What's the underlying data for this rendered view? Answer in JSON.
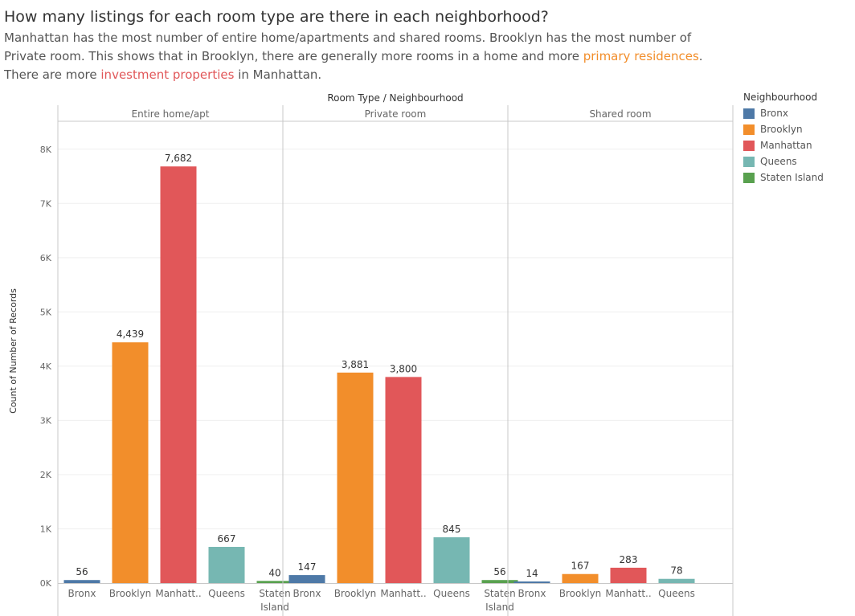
{
  "header": {
    "title": "How many listings for each room type are there in each neighborhood?",
    "line1": "Manhattan has the most number of entire home/apartments and shared rooms. Brooklyn has the most number of",
    "line2_pre": "Private room. This shows that in Brooklyn, there are generally more rooms in a home and more ",
    "line2_hl": "primary residences",
    "line2_post": ".",
    "line3_pre": "There are more ",
    "line3_hl": "investment properties",
    "line3_post": " in Manhattan."
  },
  "legend": {
    "title": "Neighbourhood",
    "items": [
      {
        "label": "Bronx",
        "color": "#4e79a7"
      },
      {
        "label": "Brooklyn",
        "color": "#f28e2b"
      },
      {
        "label": "Manhattan",
        "color": "#e15759"
      },
      {
        "label": "Queens",
        "color": "#76b7b2"
      },
      {
        "label": "Staten Island",
        "color": "#59a14f"
      }
    ]
  },
  "chart_data": {
    "type": "bar",
    "title": "Room Type  /  Neighbourhood",
    "ylabel": "Count of Number of Records",
    "ylim": [
      0,
      8500
    ],
    "yticks": [
      0,
      1000,
      2000,
      3000,
      4000,
      5000,
      6000,
      7000,
      8000
    ],
    "ytick_labels": [
      "0K",
      "1K",
      "2K",
      "3K",
      "4K",
      "5K",
      "6K",
      "7K",
      "8K"
    ],
    "grid": true,
    "legend_position": "right",
    "panels": [
      {
        "name": "Entire home/apt",
        "bars": [
          {
            "category": "Bronx",
            "label": "Bronx",
            "value": 56,
            "value_label": "56"
          },
          {
            "category": "Brooklyn",
            "label": "Brooklyn",
            "value": 4439,
            "value_label": "4,439"
          },
          {
            "category": "Manhattan",
            "label": "Manhatt..",
            "value": 7682,
            "value_label": "7,682"
          },
          {
            "category": "Queens",
            "label": "Queens",
            "value": 667,
            "value_label": "667"
          },
          {
            "category": "Staten Island",
            "label": "Staten Island",
            "value": 40,
            "value_label": "40"
          }
        ]
      },
      {
        "name": "Private room",
        "bars": [
          {
            "category": "Bronx",
            "label": "Bronx",
            "value": 147,
            "value_label": "147"
          },
          {
            "category": "Brooklyn",
            "label": "Brooklyn",
            "value": 3881,
            "value_label": "3,881"
          },
          {
            "category": "Manhattan",
            "label": "Manhatt..",
            "value": 3800,
            "value_label": "3,800"
          },
          {
            "category": "Queens",
            "label": "Queens",
            "value": 845,
            "value_label": "845"
          },
          {
            "category": "Staten Island",
            "label": "Staten Island",
            "value": 56,
            "value_label": "56"
          }
        ]
      },
      {
        "name": "Shared room",
        "bars": [
          {
            "category": "Bronx",
            "label": "Bronx",
            "value": 14,
            "value_label": "14"
          },
          {
            "category": "Brooklyn",
            "label": "Brooklyn",
            "value": 167,
            "value_label": "167"
          },
          {
            "category": "Manhattan",
            "label": "Manhatt..",
            "value": 283,
            "value_label": "283"
          },
          {
            "category": "Queens",
            "label": "Queens",
            "value": 78,
            "value_label": "78"
          }
        ]
      }
    ]
  }
}
